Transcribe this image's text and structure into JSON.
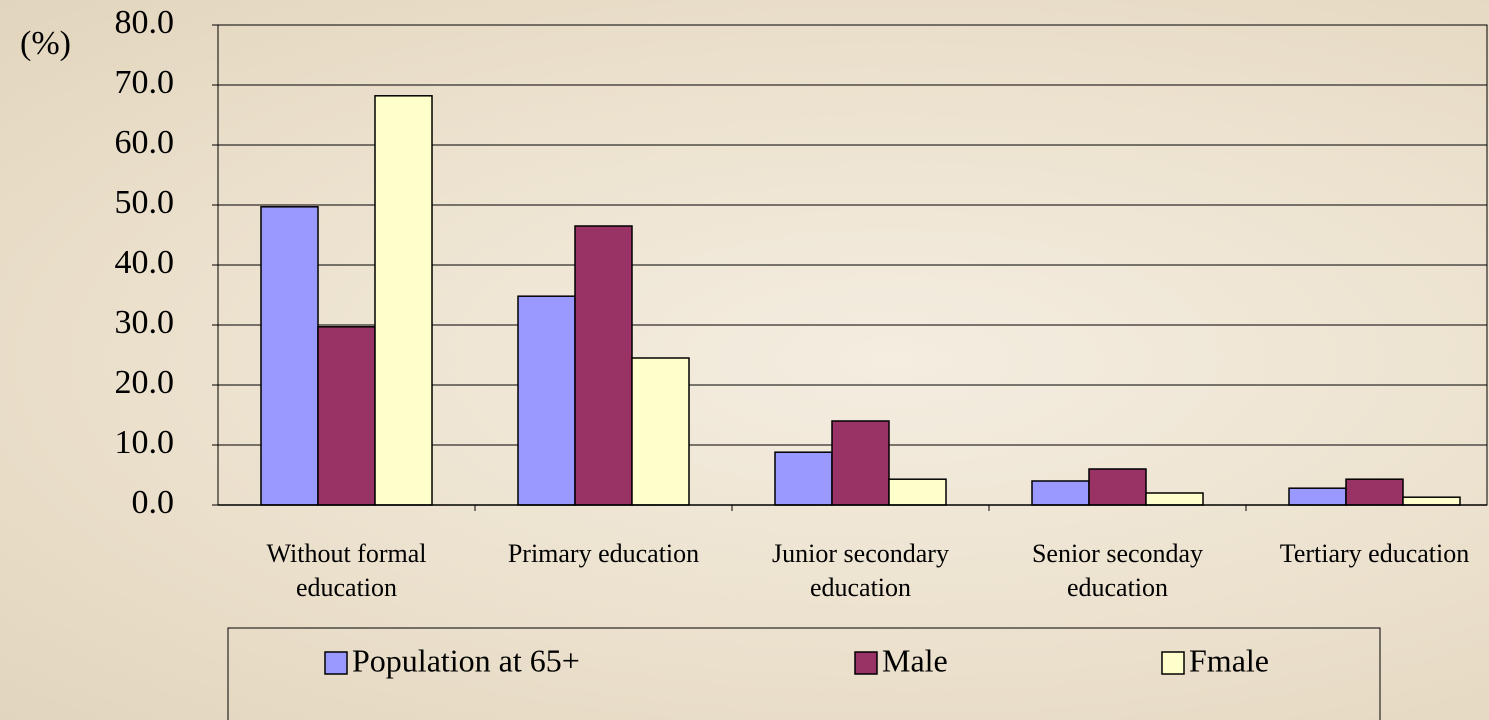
{
  "chart_data": {
    "type": "bar",
    "y_axis_label": "(%)",
    "categories": [
      "Without formal education",
      "Primary education",
      "Junior secondary education",
      "Senior seconday education",
      "Tertiary education"
    ],
    "series": [
      {
        "name": "Population at 65+",
        "color": "#9999ff",
        "values": [
          49.7,
          34.8,
          8.8,
          4.0,
          2.8
        ]
      },
      {
        "name": "Male",
        "color": "#993366",
        "values": [
          29.7,
          46.5,
          14.0,
          6.0,
          4.3
        ]
      },
      {
        "name": "Fmale",
        "color": "#ffffcc",
        "values": [
          68.2,
          24.5,
          4.3,
          2.0,
          1.3
        ]
      }
    ],
    "ylim": [
      0,
      80
    ],
    "yticks": [
      {
        "value": 0,
        "label": "0.0"
      },
      {
        "value": 10,
        "label": "10.0"
      },
      {
        "value": 20,
        "label": "20.0"
      },
      {
        "value": 30,
        "label": "30.0"
      },
      {
        "value": 40,
        "label": "40.0"
      },
      {
        "value": 50,
        "label": "50.0"
      },
      {
        "value": 60,
        "label": "60.0"
      },
      {
        "value": 70,
        "label": "70.0"
      },
      {
        "value": 80,
        "label": "80.0"
      }
    ],
    "grid": true,
    "legend": "bottom"
  }
}
